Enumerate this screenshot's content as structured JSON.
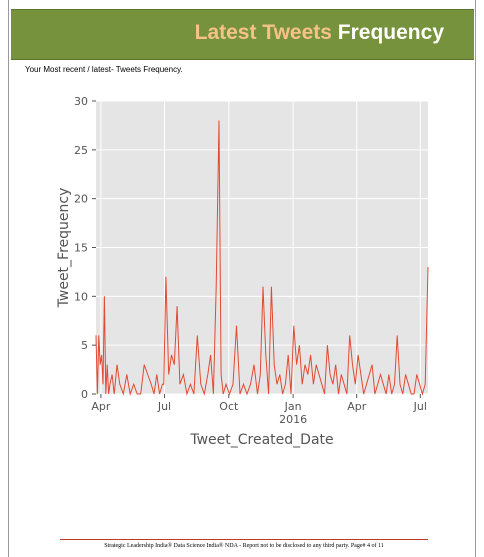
{
  "banner": {
    "title_part1": "Latest Tweets",
    "title_part2": "Frequency"
  },
  "subtitle": "Your Most recent / latest- Tweets Frequency.",
  "footer": "Strategic Leadership India® Data Science India® NDA - Report not to be disclosed to any third party. Page# 4 of 11",
  "colors": {
    "banner": "#77923c",
    "accent": "#f6c287",
    "line": "#e24a33",
    "plot_bg": "#e5e5e5"
  },
  "chart_data": {
    "type": "line",
    "xlabel": "Tweet_Created_Date",
    "ylabel": "Tweet_Frequency",
    "ylim": [
      0,
      30
    ],
    "xlim": [
      "2015-03-25",
      "2016-07-12"
    ],
    "yticks": [
      0,
      5,
      10,
      15,
      20,
      25,
      30
    ],
    "xticks": [
      {
        "date": "2015-04-01",
        "label": "Apr",
        "sublabel": ""
      },
      {
        "date": "2015-07-01",
        "label": "Jul",
        "sublabel": ""
      },
      {
        "date": "2015-10-01",
        "label": "Oct",
        "sublabel": ""
      },
      {
        "date": "2016-01-01",
        "label": "Jan",
        "sublabel": "2016"
      },
      {
        "date": "2016-04-01",
        "label": "Apr",
        "sublabel": ""
      },
      {
        "date": "2016-07-01",
        "label": "Jul",
        "sublabel": ""
      }
    ],
    "grid": true,
    "series": [
      {
        "x": [
          "2015-03-25",
          "2015-03-27",
          "2015-03-29",
          "2015-03-31",
          "2015-04-02",
          "2015-04-04",
          "2015-04-06",
          "2015-04-08",
          "2015-04-10",
          "2015-04-12",
          "2015-04-14",
          "2015-04-17",
          "2015-04-20",
          "2015-04-24",
          "2015-04-28",
          "2015-05-03",
          "2015-05-08",
          "2015-05-13",
          "2015-05-18",
          "2015-05-23",
          "2015-05-28",
          "2015-06-02",
          "2015-06-07",
          "2015-06-12",
          "2015-06-16",
          "2015-06-20",
          "2015-06-24",
          "2015-06-28",
          "2015-06-30",
          "2015-07-03",
          "2015-07-07",
          "2015-07-11",
          "2015-07-15",
          "2015-07-19",
          "2015-07-23",
          "2015-07-28",
          "2015-08-02",
          "2015-08-07",
          "2015-08-12",
          "2015-08-17",
          "2015-08-22",
          "2015-08-27",
          "2015-09-01",
          "2015-09-05",
          "2015-09-09",
          "2015-09-13",
          "2015-09-17",
          "2015-09-20",
          "2015-09-23",
          "2015-09-27",
          "2015-10-02",
          "2015-10-07",
          "2015-10-12",
          "2015-10-17",
          "2015-10-22",
          "2015-10-27",
          "2015-11-01",
          "2015-11-06",
          "2015-11-11",
          "2015-11-15",
          "2015-11-19",
          "2015-11-23",
          "2015-11-27",
          "2015-12-01",
          "2015-12-05",
          "2015-12-09",
          "2015-12-13",
          "2015-12-17",
          "2015-12-21",
          "2015-12-25",
          "2015-12-29",
          "2016-01-02",
          "2016-01-06",
          "2016-01-10",
          "2016-01-14",
          "2016-01-18",
          "2016-01-22",
          "2016-01-26",
          "2016-01-30",
          "2016-02-03",
          "2016-02-07",
          "2016-02-11",
          "2016-02-15",
          "2016-02-19",
          "2016-02-23",
          "2016-02-27",
          "2016-03-02",
          "2016-03-06",
          "2016-03-10",
          "2016-03-14",
          "2016-03-18",
          "2016-03-22",
          "2016-03-26",
          "2016-03-30",
          "2016-04-03",
          "2016-04-07",
          "2016-04-11",
          "2016-04-15",
          "2016-04-19",
          "2016-04-23",
          "2016-04-27",
          "2016-05-01",
          "2016-05-05",
          "2016-05-09",
          "2016-05-13",
          "2016-05-17",
          "2016-05-21",
          "2016-05-25",
          "2016-05-29",
          "2016-06-02",
          "2016-06-06",
          "2016-06-10",
          "2016-06-14",
          "2016-06-18",
          "2016-06-22",
          "2016-06-26",
          "2016-06-30",
          "2016-07-04",
          "2016-07-08",
          "2016-07-12"
        ],
        "y": [
          6,
          0,
          6,
          3,
          4,
          1,
          10,
          0,
          3,
          0,
          1,
          2,
          0,
          3,
          1,
          0,
          2,
          0,
          1,
          0,
          0,
          3,
          2,
          1,
          0,
          2,
          0,
          1,
          1,
          12,
          2,
          4,
          3,
          9,
          1,
          2,
          0,
          1,
          0,
          6,
          1,
          0,
          2,
          4,
          0,
          11,
          28,
          2,
          0,
          1,
          0,
          1,
          7,
          0,
          1,
          0,
          1,
          3,
          0,
          2,
          11,
          4,
          0,
          11,
          3,
          1,
          2,
          0,
          1,
          4,
          0,
          7,
          3,
          5,
          1,
          3,
          2,
          4,
          1,
          3,
          2,
          1,
          0,
          5,
          2,
          1,
          3,
          0,
          2,
          1,
          0,
          6,
          3,
          1,
          4,
          2,
          0,
          1,
          2,
          3,
          0,
          1,
          2,
          1,
          0,
          2,
          0,
          1,
          6,
          1,
          0,
          2,
          1,
          0,
          0,
          2,
          1,
          0,
          1,
          13
        ]
      }
    ]
  }
}
